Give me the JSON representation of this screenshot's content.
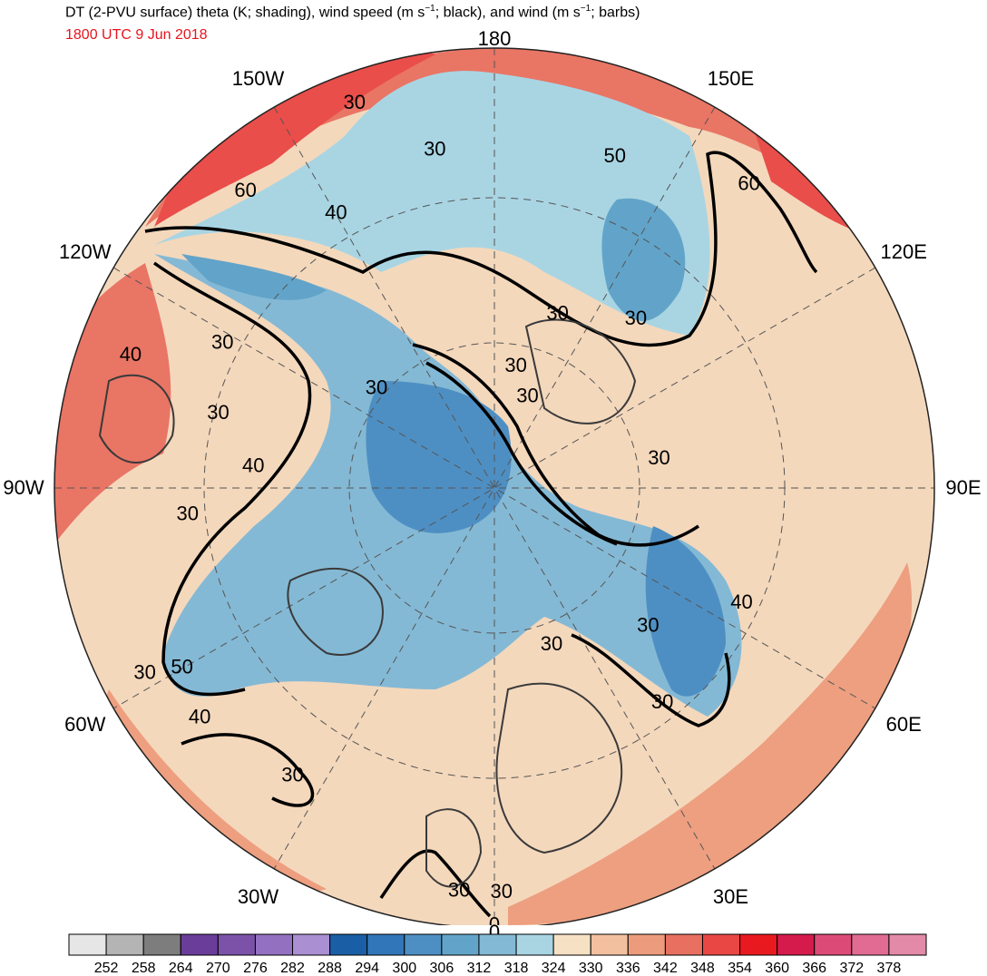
{
  "header": {
    "title_parts": [
      "DT (2-PVU surface) theta (K; shading), wind speed (m s",
      "−1",
      "; black), and wind (m s",
      "−1",
      "; barbs)"
    ],
    "subtitle": "1800 UTC 9 Jun 2018"
  },
  "map": {
    "projection": "north-polar-stereographic",
    "longitude_labels": [
      {
        "text": "180",
        "lon": 180
      },
      {
        "text": "150E",
        "lon": 150
      },
      {
        "text": "120E",
        "lon": 120
      },
      {
        "text": "90E",
        "lon": 90
      },
      {
        "text": "60E",
        "lon": 60
      },
      {
        "text": "30E",
        "lon": 30
      },
      {
        "text": "0",
        "lon": 0
      },
      {
        "text": "30W",
        "lon": -30
      },
      {
        "text": "60W",
        "lon": -60
      },
      {
        "text": "90W",
        "lon": -90
      },
      {
        "text": "120W",
        "lon": -120
      },
      {
        "text": "150W",
        "lon": -150
      }
    ],
    "wind_speed_contour_labels": [
      {
        "text": "30",
        "lon": -160,
        "lat_frac": 0.93
      },
      {
        "text": "30",
        "lon": -170,
        "lat_frac": 0.78
      },
      {
        "text": "50",
        "lon": 160,
        "lat_frac": 0.8
      },
      {
        "text": "60",
        "lon": 140,
        "lat_frac": 0.9
      },
      {
        "text": "40",
        "lon": -150,
        "lat_frac": 0.72
      },
      {
        "text": "60",
        "lon": -140,
        "lat_frac": 0.88
      },
      {
        "text": "30",
        "lon": -118,
        "lat_frac": 0.7
      },
      {
        "text": "40",
        "lon": -110,
        "lat_frac": 0.88
      },
      {
        "text": "30",
        "lon": -105,
        "lat_frac": 0.65
      },
      {
        "text": "30",
        "lon": 160,
        "lat_frac": 0.42
      },
      {
        "text": "30",
        "lon": 140,
        "lat_frac": 0.5
      },
      {
        "text": "30",
        "lon": 170,
        "lat_frac": 0.28
      },
      {
        "text": "30",
        "lon": 160,
        "lat_frac": 0.22
      },
      {
        "text": "30",
        "lon": -130,
        "lat_frac": 0.35
      },
      {
        "text": "40",
        "lon": -95,
        "lat_frac": 0.55
      },
      {
        "text": "30",
        "lon": -85,
        "lat_frac": 0.7
      },
      {
        "text": "30",
        "lon": 100,
        "lat_frac": 0.38
      },
      {
        "text": "30",
        "lon": -62,
        "lat_frac": 0.9
      },
      {
        "text": "50",
        "lon": -60,
        "lat_frac": 0.82
      },
      {
        "text": "40",
        "lon": -52,
        "lat_frac": 0.85
      },
      {
        "text": "30",
        "lon": 20,
        "lat_frac": 0.38
      },
      {
        "text": "30",
        "lon": 48,
        "lat_frac": 0.47
      },
      {
        "text": "40",
        "lon": 65,
        "lat_frac": 0.62
      },
      {
        "text": "30",
        "lon": 38,
        "lat_frac": 0.62
      },
      {
        "text": "30",
        "lon": -35,
        "lat_frac": 0.8
      },
      {
        "text": "30",
        "lon": -5,
        "lat_frac": 0.92
      },
      {
        "text": "30",
        "lon": 1,
        "lat_frac": 0.92
      },
      {
        "text": "0",
        "lon": 0,
        "lat_frac": 0.995
      }
    ]
  },
  "colorbar": {
    "ticks": [
      "252",
      "258",
      "264",
      "270",
      "276",
      "282",
      "288",
      "294",
      "300",
      "306",
      "312",
      "318",
      "324",
      "330",
      "336",
      "342",
      "348",
      "354",
      "360",
      "366",
      "372",
      "378"
    ],
    "colors": [
      "#e6e6e6",
      "#b4b4b4",
      "#7d7d7d",
      "#6a3d9a",
      "#7c52a9",
      "#9470c0",
      "#aa8fd2",
      "#1a5fa6",
      "#3176b8",
      "#4e8fc3",
      "#62a4c9",
      "#84b9d5",
      "#a9d5e3",
      "#f7e1c4",
      "#f2c09e",
      "#ec9c7c",
      "#e87060",
      "#e84744",
      "#e81a1f",
      "#d41b4b",
      "#dc4b77",
      "#e26b93",
      "#e48aa9"
    ]
  },
  "colors": {
    "subtitle": "#e8141e",
    "contour": "#000000",
    "coastline": "#3a3a3a"
  }
}
